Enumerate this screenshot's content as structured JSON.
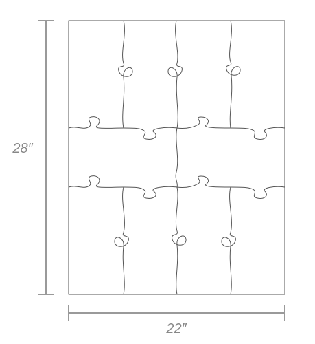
{
  "dimensions": {
    "height_label": "28″",
    "width_label": "22″"
  },
  "colors": {
    "outline": "#555555",
    "dimension": "#9a9a9a",
    "label": "#888888",
    "background": "#ffffff"
  },
  "puzzle": {
    "columns": 4,
    "rows": 3,
    "piece_count": 12
  }
}
